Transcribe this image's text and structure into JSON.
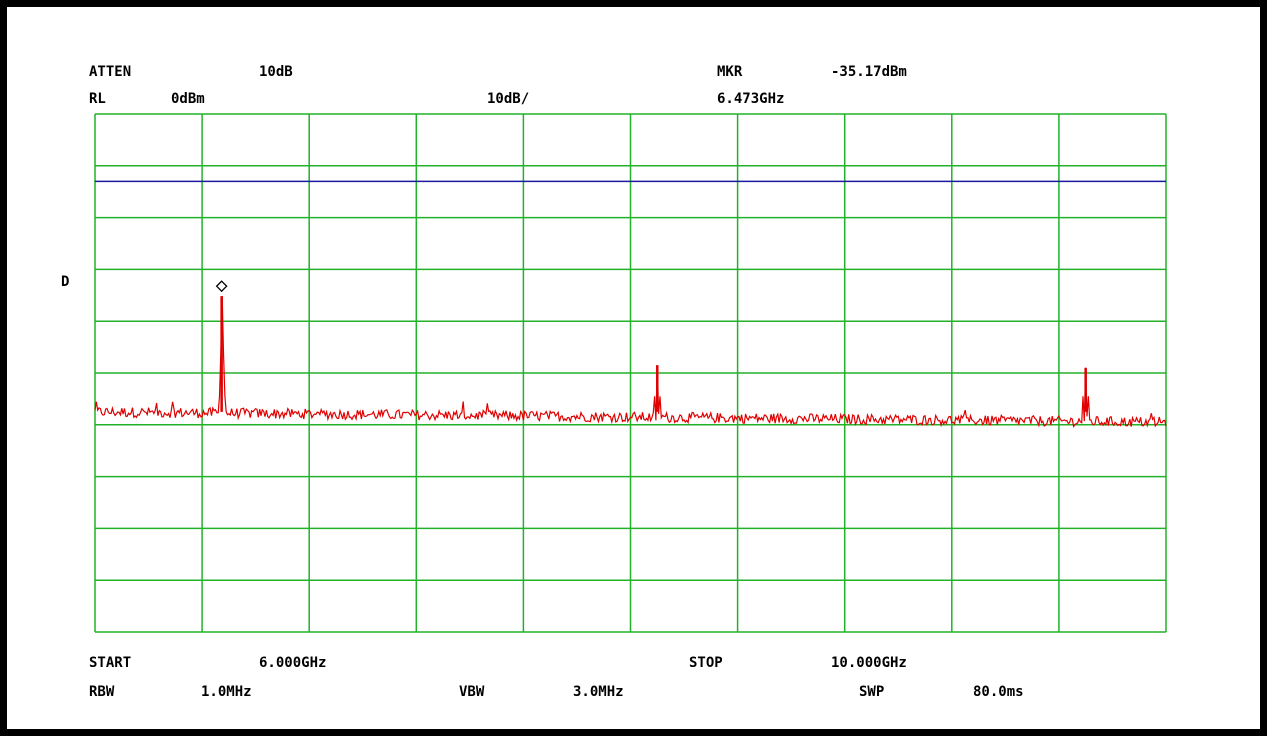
{
  "header": {
    "atten_label": "ATTEN",
    "atten_value": "10dB",
    "marker_label": "MKR",
    "marker_amplitude": "-35.17dBm",
    "ref_label": "RL",
    "ref_value": "0dBm",
    "scale_value": "10dB/",
    "marker_frequency": "6.473GHz"
  },
  "side": {
    "detector_mode": "D"
  },
  "footer": {
    "start_label": "START",
    "start_value": "6.000GHz",
    "stop_label": "STOP",
    "stop_value": "10.000GHz",
    "rbw_label": "RBW",
    "rbw_value": "1.0MHz",
    "vbw_label": "VBW",
    "vbw_value": "3.0MHz",
    "swp_label": "SWP",
    "swp_value": "80.0ms"
  },
  "colors": {
    "grid": "#22b22a",
    "trace": "#e00000",
    "threshold_line": "#1a1aa0",
    "marker": "#000000"
  },
  "chart_data": {
    "type": "line",
    "x_unit": "GHz",
    "y_unit": "dBm",
    "xlim": [
      6.0,
      10.0
    ],
    "ylim": [
      -100,
      0
    ],
    "x_divisions": 10,
    "y_divisions": 10,
    "grid": true,
    "reference_line_dbm": -13,
    "noise_floor_start_dbm": -57.5,
    "noise_floor_end_dbm": -59.5,
    "peaks": [
      {
        "x": 6.473,
        "y": -35.17
      },
      {
        "x": 8.1,
        "y": -48.5
      },
      {
        "x": 9.7,
        "y": -49.0
      }
    ],
    "marker": {
      "x": 6.473,
      "y": -35.17,
      "shape": "diamond"
    }
  }
}
